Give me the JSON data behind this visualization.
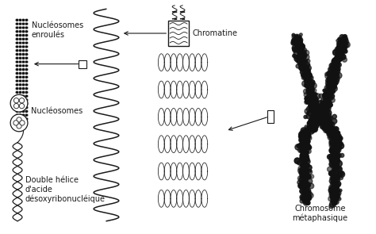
{
  "bg_color": "#ffffff",
  "fig_width": 4.74,
  "fig_height": 2.95,
  "dpi": 100,
  "labels": {
    "nucleosomes_enroules": "Nucléosomes\nenroulés",
    "nucleosomes": "Nucléosomes",
    "double_helice": "Double hélice\nd'acide\ndésoxyribonucléique",
    "chromatine": "Chromatine",
    "chromosome": "Chromosome\nmétaphasique"
  },
  "text_fontsize": 7,
  "line_color": "#1a1a1a",
  "dark_color": "#111111"
}
